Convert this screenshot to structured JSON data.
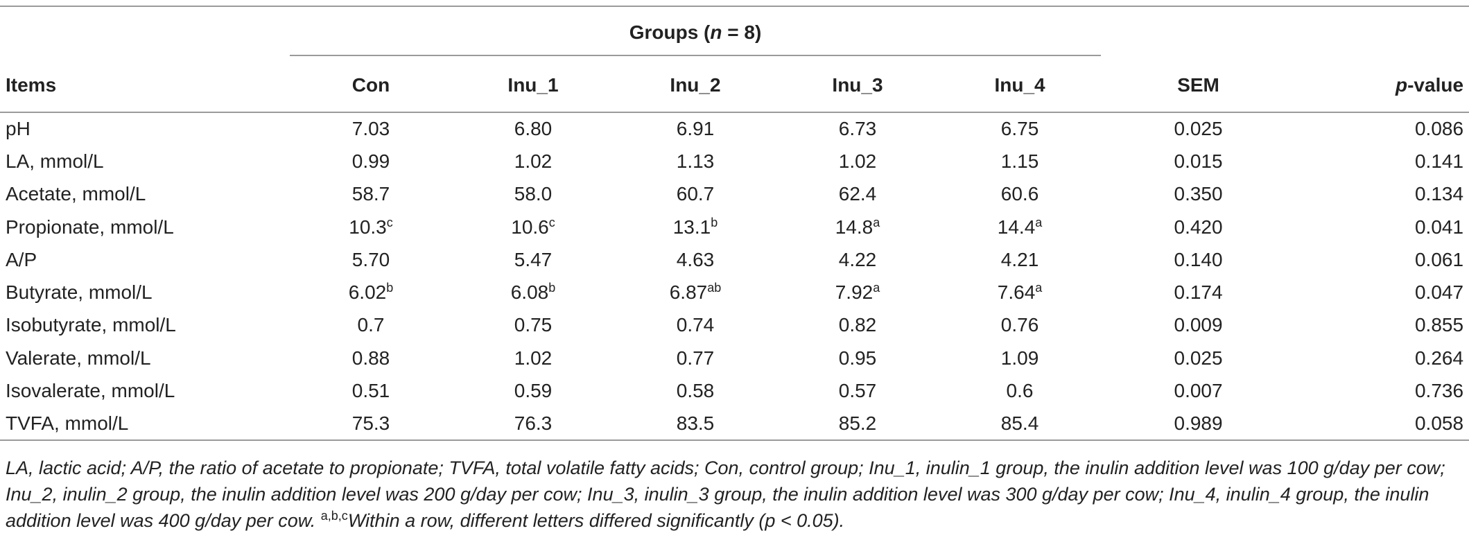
{
  "table": {
    "group_header": {
      "prefix": "Groups (",
      "n_italic": "n",
      "suffix": " = 8)"
    },
    "columns": {
      "items": "Items",
      "groups": [
        "Con",
        "Inu_1",
        "Inu_2",
        "Inu_3",
        "Inu_4"
      ],
      "sem": "SEM",
      "pvalue_italic": "p",
      "pvalue_rest": "-value"
    },
    "rows": [
      {
        "item": "pH",
        "cells": [
          {
            "v": "7.03",
            "s": ""
          },
          {
            "v": "6.80",
            "s": ""
          },
          {
            "v": "6.91",
            "s": ""
          },
          {
            "v": "6.73",
            "s": ""
          },
          {
            "v": "6.75",
            "s": ""
          }
        ],
        "sem": "0.025",
        "p": "0.086"
      },
      {
        "item": "LA, mmol/L",
        "cells": [
          {
            "v": "0.99",
            "s": ""
          },
          {
            "v": "1.02",
            "s": ""
          },
          {
            "v": "1.13",
            "s": ""
          },
          {
            "v": "1.02",
            "s": ""
          },
          {
            "v": "1.15",
            "s": ""
          }
        ],
        "sem": "0.015",
        "p": "0.141"
      },
      {
        "item": "Acetate, mmol/L",
        "cells": [
          {
            "v": "58.7",
            "s": ""
          },
          {
            "v": "58.0",
            "s": ""
          },
          {
            "v": "60.7",
            "s": ""
          },
          {
            "v": "62.4",
            "s": ""
          },
          {
            "v": "60.6",
            "s": ""
          }
        ],
        "sem": "0.350",
        "p": "0.134"
      },
      {
        "item": "Propionate, mmol/L",
        "cells": [
          {
            "v": "10.3",
            "s": "c"
          },
          {
            "v": "10.6",
            "s": "c"
          },
          {
            "v": "13.1",
            "s": "b"
          },
          {
            "v": "14.8",
            "s": "a"
          },
          {
            "v": "14.4",
            "s": "a"
          }
        ],
        "sem": "0.420",
        "p": "0.041"
      },
      {
        "item": "A/P",
        "cells": [
          {
            "v": "5.70",
            "s": ""
          },
          {
            "v": "5.47",
            "s": ""
          },
          {
            "v": "4.63",
            "s": ""
          },
          {
            "v": "4.22",
            "s": ""
          },
          {
            "v": "4.21",
            "s": ""
          }
        ],
        "sem": "0.140",
        "p": "0.061"
      },
      {
        "item": "Butyrate, mmol/L",
        "cells": [
          {
            "v": "6.02",
            "s": "b"
          },
          {
            "v": "6.08",
            "s": "b"
          },
          {
            "v": "6.87",
            "s": "ab"
          },
          {
            "v": "7.92",
            "s": "a"
          },
          {
            "v": "7.64",
            "s": "a"
          }
        ],
        "sem": "0.174",
        "p": "0.047"
      },
      {
        "item": "Isobutyrate, mmol/L",
        "cells": [
          {
            "v": "0.7",
            "s": ""
          },
          {
            "v": "0.75",
            "s": ""
          },
          {
            "v": "0.74",
            "s": ""
          },
          {
            "v": "0.82",
            "s": ""
          },
          {
            "v": "0.76",
            "s": ""
          }
        ],
        "sem": "0.009",
        "p": "0.855"
      },
      {
        "item": "Valerate, mmol/L",
        "cells": [
          {
            "v": "0.88",
            "s": ""
          },
          {
            "v": "1.02",
            "s": ""
          },
          {
            "v": "0.77",
            "s": ""
          },
          {
            "v": "0.95",
            "s": ""
          },
          {
            "v": "1.09",
            "s": ""
          }
        ],
        "sem": "0.025",
        "p": "0.264"
      },
      {
        "item": "Isovalerate, mmol/L",
        "cells": [
          {
            "v": "0.51",
            "s": ""
          },
          {
            "v": "0.59",
            "s": ""
          },
          {
            "v": "0.58",
            "s": ""
          },
          {
            "v": "0.57",
            "s": ""
          },
          {
            "v": "0.6",
            "s": ""
          }
        ],
        "sem": "0.007",
        "p": "0.736"
      },
      {
        "item": "TVFA, mmol/L",
        "cells": [
          {
            "v": "75.3",
            "s": ""
          },
          {
            "v": "76.3",
            "s": ""
          },
          {
            "v": "83.5",
            "s": ""
          },
          {
            "v": "85.2",
            "s": ""
          },
          {
            "v": "85.4",
            "s": ""
          }
        ],
        "sem": "0.989",
        "p": "0.058"
      }
    ]
  },
  "footnote": {
    "definitions": "LA, lactic acid; A/P, the ratio of acetate to propionate; TVFA, total volatile fatty acids; Con, control group; Inu_1, inulin_1 group, the inulin addition level was 100 g/day per cow; Inu_2, inulin_2 group, the inulin addition level was 200 g/day per cow; Inu_3, inulin_3 group, the inulin addition level was 300 g/day per cow; Inu_4, inulin_4 group, the inulin addition level was 400 g/day per cow. ",
    "superscripts": "a,b,c",
    "significance": "Within a row, different letters differed significantly (p < 0.05)."
  }
}
